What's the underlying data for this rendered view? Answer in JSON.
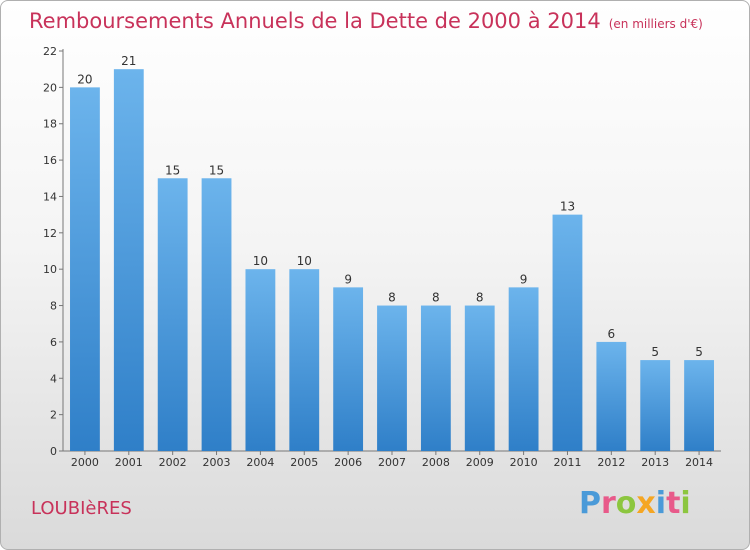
{
  "title": "Remboursements Annuels de la Dette de 2000 à 2014",
  "title_unit": "(en milliers d'€)",
  "commune": "LOUBIèRES",
  "brand": {
    "p": "P",
    "r": "r",
    "o": "o",
    "x": "x",
    "i1": "i",
    "t": "t",
    "i2": "i"
  },
  "colors": {
    "bar": "#3a8fd6",
    "bar_light": "#6cb4ec",
    "title": "#c8325a"
  },
  "chart_data": {
    "type": "bar",
    "categories": [
      "2000",
      "2001",
      "2002",
      "2003",
      "2004",
      "2005",
      "2006",
      "2007",
      "2008",
      "2009",
      "2010",
      "2011",
      "2012",
      "2013",
      "2014"
    ],
    "values": [
      20,
      21,
      15,
      15,
      10,
      10,
      9,
      8,
      8,
      8,
      9,
      13,
      6,
      5,
      5
    ],
    "ylim": [
      0,
      22
    ],
    "yticks": [
      0,
      2,
      4,
      6,
      8,
      10,
      12,
      14,
      16,
      18,
      20,
      22
    ],
    "grid": false
  }
}
